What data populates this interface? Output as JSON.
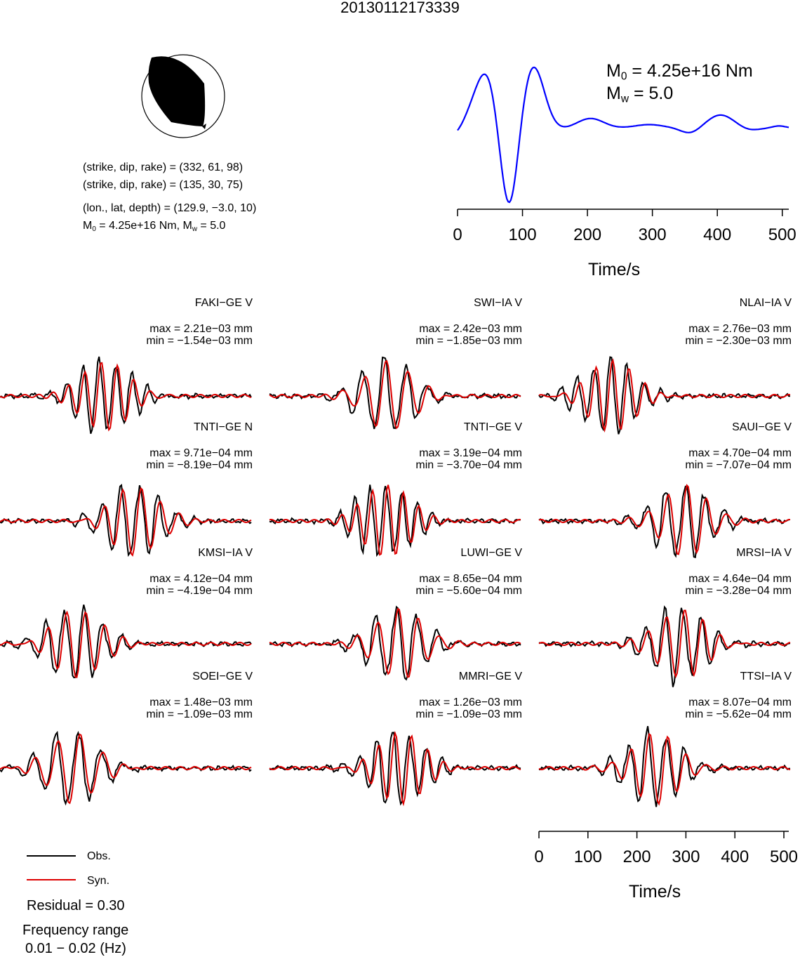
{
  "title": "20130112173339",
  "source_params": {
    "line1": "(strike, dip, rake) = (332, 61, 98)",
    "line2": "(strike, dip, rake) = (135, 30, 75)",
    "line3": "(lon., lat, depth) = (129.9, −3.0, 10)",
    "line4_m0": "4.25e+16 Nm",
    "line4_mw": "5.0"
  },
  "stf_panel": {
    "m0_value": "4.25e+16 Nm",
    "mw_value": "5.0",
    "xlabel": "Time/s",
    "xticks": [
      "0",
      "100",
      "200",
      "300",
      "400",
      "500"
    ],
    "line_color": "#0000ff"
  },
  "chart_data": {
    "type": "line",
    "title": "20130112173339",
    "xlabel": "Time/s",
    "xlim": [
      0,
      510
    ],
    "xticks": [
      0,
      100,
      200,
      300,
      400,
      500
    ],
    "series": [
      {
        "name": "Obs.",
        "color": "#000000"
      },
      {
        "name": "Syn.",
        "color": "#dd0000"
      }
    ],
    "stations": [
      {
        "name": "FAKI−GE V",
        "max": "max = 2.21e−03 mm",
        "min": "min = −1.54e−03 mm"
      },
      {
        "name": "SWI−IA V",
        "max": "max = 2.42e−03 mm",
        "min": "min = −1.85e−03 mm"
      },
      {
        "name": "NLAI−IA V",
        "max": "max = 2.76e−03 mm",
        "min": "min = −2.30e−03 mm"
      },
      {
        "name": "TNTI−GE N",
        "max": "max = 9.71e−04 mm",
        "min": "min = −8.19e−04 mm"
      },
      {
        "name": "TNTI−GE V",
        "max": "max = 3.19e−04 mm",
        "min": "min = −3.70e−04 mm"
      },
      {
        "name": "SAUI−GE V",
        "max": "max = 4.70e−04 mm",
        "min": "min = −7.07e−04 mm"
      },
      {
        "name": "KMSI−IA V",
        "max": "max = 4.12e−04 mm",
        "min": "min = −4.19e−04 mm"
      },
      {
        "name": "LUWI−GE V",
        "max": "max = 8.65e−04 mm",
        "min": "min = −5.60e−04 mm"
      },
      {
        "name": "MRSI−IA V",
        "max": "max = 4.64e−04 mm",
        "min": "min = −3.28e−04 mm"
      },
      {
        "name": "SOEI−GE V",
        "max": "max = 1.48e−03 mm",
        "min": "min = −1.09e−03 mm"
      },
      {
        "name": "MMRI−GE V",
        "max": "max = 1.26e−03 mm",
        "min": "min = −1.09e−03 mm"
      },
      {
        "name": "TTSI−IA V",
        "max": "max = 8.07e−04 mm",
        "min": "min = −5.62e−04 mm"
      }
    ]
  },
  "legend": {
    "obs_label": "Obs.",
    "syn_label": "Syn.",
    "obs_color": "#000000",
    "syn_color": "#dd0000"
  },
  "residual": "Residual = 0.30",
  "frequency_label": "Frequency range",
  "frequency_value": "0.01 − 0.02 (Hz)"
}
